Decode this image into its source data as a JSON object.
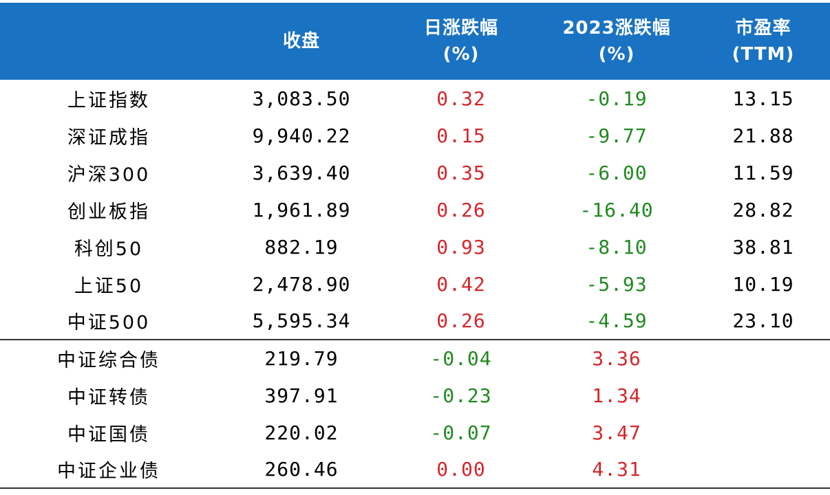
{
  "colors": {
    "header_bg": "#1a72c2",
    "header_text": "#ffffff",
    "positive": "#d4262b",
    "negative": "#1f8a1f"
  },
  "headers": [
    {
      "line1": "",
      "line2": ""
    },
    {
      "line1": "收盘",
      "line2": ""
    },
    {
      "line1": "日涨跌幅",
      "line2": "(%)"
    },
    {
      "line1": "2023涨跌幅",
      "line2": "(%)"
    },
    {
      "line1": "市盈率",
      "line2": "(TTM)"
    }
  ],
  "rows": [
    {
      "name": "上证指数",
      "close": "3,083.50",
      "day": "0.32",
      "ytd": "-0.19",
      "pe": "13.15"
    },
    {
      "name": "深证成指",
      "close": "9,940.22",
      "day": "0.15",
      "ytd": "-9.77",
      "pe": "21.88"
    },
    {
      "name": "沪深300",
      "close": "3,639.40",
      "day": "0.35",
      "ytd": "-6.00",
      "pe": "11.59"
    },
    {
      "name": "创业板指",
      "close": "1,961.89",
      "day": "0.26",
      "ytd": "-16.40",
      "pe": "28.82"
    },
    {
      "name": "科创50",
      "close": "882.19",
      "day": "0.93",
      "ytd": "-8.10",
      "pe": "38.81"
    },
    {
      "name": "上证50",
      "close": "2,478.90",
      "day": "0.42",
      "ytd": "-5.93",
      "pe": "10.19"
    },
    {
      "name": "中证500",
      "close": "5,595.34",
      "day": "0.26",
      "ytd": "-4.59",
      "pe": "23.10"
    },
    {
      "name": "中证综合债",
      "close": "219.79",
      "day": "-0.04",
      "ytd": "3.36",
      "pe": ""
    },
    {
      "name": "中证转债",
      "close": "397.91",
      "day": "-0.23",
      "ytd": "1.34",
      "pe": ""
    },
    {
      "name": "中证国债",
      "close": "220.02",
      "day": "-0.07",
      "ytd": "3.47",
      "pe": ""
    },
    {
      "name": "中证企业债",
      "close": "260.46",
      "day": "0.00",
      "ytd": "4.31",
      "pe": ""
    }
  ]
}
